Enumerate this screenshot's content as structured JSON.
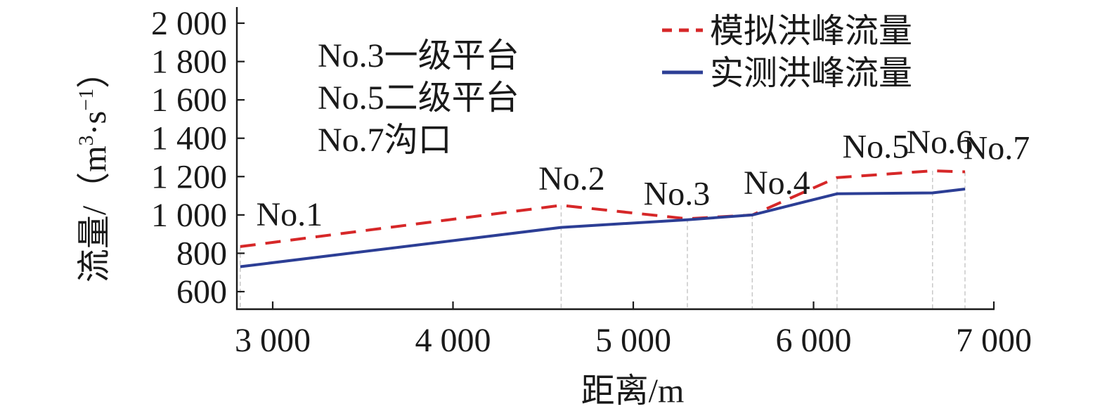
{
  "chart_data": {
    "type": "line",
    "xlabel": "距离/m",
    "ylabel_main": "流量/（",
    "ylabel_unit_m": "m",
    "ylabel_unit_m_exp": "3",
    "ylabel_unit_dot_s": "·s",
    "ylabel_unit_s_exp": "−1",
    "ylabel_close": "）",
    "xlim": [
      2800,
      7000
    ],
    "ylim": [
      550,
      2000
    ],
    "x_ticks": [
      3000,
      4000,
      5000,
      6000,
      7000
    ],
    "x_tick_labels": [
      "3 000",
      "4 000",
      "5 000",
      "6 000",
      "7 000"
    ],
    "y_ticks": [
      600,
      800,
      1000,
      1200,
      1400,
      1600,
      1800,
      2000
    ],
    "y_tick_labels": [
      "600",
      "800",
      "1 000",
      "1 200",
      "1 400",
      "1 600",
      "1 800",
      "2 000"
    ],
    "stations": [
      {
        "label": "No.1",
        "x": 2820
      },
      {
        "label": "No.2",
        "x": 4600
      },
      {
        "label": "No.3",
        "x": 5300
      },
      {
        "label": "No.4",
        "x": 5660
      },
      {
        "label": "No.5",
        "x": 6130
      },
      {
        "label": "No.6",
        "x": 6660
      },
      {
        "label": "No.7",
        "x": 6840
      }
    ],
    "series": [
      {
        "name": "模拟洪峰流量",
        "color": "#d62728",
        "style": "dashed",
        "x": [
          2820,
          4600,
          5300,
          5660,
          6130,
          6660,
          6840
        ],
        "values": [
          835,
          1050,
          980,
          1000,
          1195,
          1230,
          1225
        ]
      },
      {
        "name": "实测洪峰流量",
        "color": "#2c3e95",
        "style": "solid",
        "x": [
          2820,
          4600,
          5300,
          5660,
          6130,
          6660,
          6840
        ],
        "values": [
          730,
          935,
          975,
          1000,
          1110,
          1115,
          1135
        ]
      }
    ],
    "annotations": [
      "No.3一级平台",
      "No.5二级平台",
      "No.7沟口"
    ],
    "legend_position": "top-right"
  }
}
